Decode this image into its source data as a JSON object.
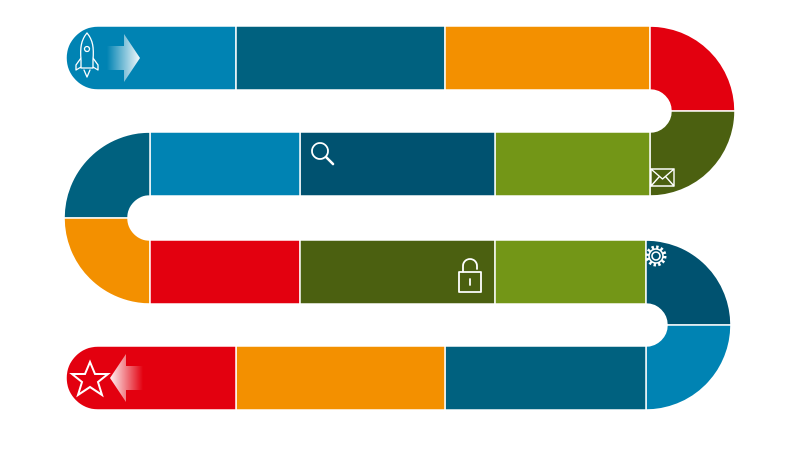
{
  "colors": {
    "blue": "#0083b3",
    "teal": "#00617f",
    "dark_teal": "#005270",
    "orange": "#f39000",
    "red": "#e3000f",
    "dark_green": "#4b6010",
    "olive": "#739617"
  },
  "icons": [
    "rocket-icon",
    "arrow-right-icon",
    "search-icon",
    "envelope-icon",
    "gear-icon",
    "unlock-icon",
    "star-icon",
    "arrow-left-icon"
  ]
}
